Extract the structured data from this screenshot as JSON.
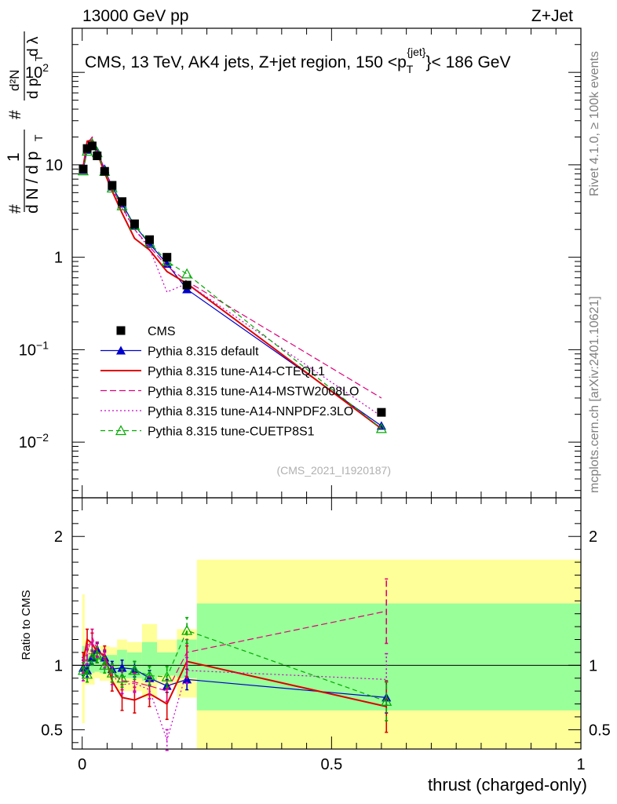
{
  "header": {
    "left": "13000 GeV pp",
    "right": "Z+Jet"
  },
  "side": {
    "rivet": "Rivet 4.1.0, ≥ 100k events",
    "site": "mcplots.cern.ch [arXiv:2401.10621]"
  },
  "main": {
    "title_prefix": "CMS, 13 TeV, AK4 jets, Z+jet region, 150 <p",
    "title_sub": "T",
    "title_sup": "{jet}",
    "title_suffix": "}< 186 GeV",
    "analysis_id": "(CMS_2021_I1920187)",
    "ylabel_parts": {
      "hash": "#",
      "one": "1",
      "den": "d N / d p",
      "T": "T",
      "d2N": "d²N",
      "hash2": "#",
      "dp": "d p",
      "dl": "d λ"
    }
  },
  "ratio": {
    "ylabel": "Ratio to CMS"
  },
  "xaxis": {
    "label": "thrust (charged-only)"
  },
  "chart_data": [
    {
      "type": "line",
      "panel": "main",
      "yscale": "log",
      "xlim": [
        -0.02,
        1.0
      ],
      "ylim": [
        0.0025,
        300
      ],
      "yticks": [
        {
          "value": 0.01,
          "label": "10",
          "sup": "−2"
        },
        {
          "value": 0.1,
          "label": "10",
          "sup": "−1"
        },
        {
          "value": 1,
          "label": "1",
          "sup": ""
        },
        {
          "value": 10,
          "label": "10",
          "sup": ""
        },
        {
          "value": 100,
          "label": "10",
          "sup": "2"
        }
      ],
      "legend_position": "lower-left",
      "series": [
        {
          "name": "CMS",
          "color": "#000000",
          "marker": "square",
          "dash": "none",
          "x": [
            0.002,
            0.01,
            0.02,
            0.03,
            0.045,
            0.06,
            0.08,
            0.105,
            0.135,
            0.17,
            0.21,
            0.6
          ],
          "y": [
            9,
            15,
            16,
            12.5,
            8.5,
            6,
            4,
            2.3,
            1.55,
            1.0,
            0.5,
            0.021
          ]
        },
        {
          "name": "Pythia 8.315 default",
          "color": "#0000cc",
          "marker": "triangle",
          "dash": "none",
          "x": [
            0.002,
            0.01,
            0.02,
            0.03,
            0.045,
            0.06,
            0.08,
            0.105,
            0.135,
            0.17,
            0.21,
            0.6
          ],
          "y": [
            8.8,
            14.5,
            17,
            14,
            9,
            5.8,
            3.8,
            2.2,
            1.4,
            0.85,
            0.45,
            0.015
          ]
        },
        {
          "name": "Pythia 8.315 tune-A14-CTEQL1",
          "color": "#e00000",
          "marker": "none",
          "dash": "none",
          "x": [
            0.002,
            0.01,
            0.02,
            0.03,
            0.045,
            0.06,
            0.08,
            0.105,
            0.135,
            0.17,
            0.21,
            0.6
          ],
          "y": [
            9.5,
            18,
            18.5,
            13.5,
            8.2,
            5.2,
            3.0,
            1.6,
            1.2,
            0.7,
            0.52,
            0.014
          ]
        },
        {
          "name": "Pythia 8.315 tune-A14-MSTW2008LO",
          "color": "#e0007a",
          "marker": "none",
          "dash": "8,4",
          "x": [
            0.002,
            0.01,
            0.02,
            0.03,
            0.045,
            0.06,
            0.08,
            0.105,
            0.135,
            0.17,
            0.21,
            0.6
          ],
          "y": [
            9.2,
            17,
            20,
            14,
            9,
            5.6,
            3.5,
            2.0,
            1.3,
            0.8,
            0.55,
            0.03
          ]
        },
        {
          "name": "Pythia 8.315 tune-A14-NNPDF2.3LO",
          "color": "#cc00cc",
          "marker": "none",
          "dash": "2,3",
          "x": [
            0.002,
            0.01,
            0.02,
            0.03,
            0.045,
            0.06,
            0.08,
            0.105,
            0.135,
            0.17,
            0.21,
            0.6
          ],
          "y": [
            8.5,
            16,
            18,
            13.5,
            8.8,
            5.5,
            3.4,
            2.0,
            1.25,
            0.42,
            0.52,
            0.019
          ]
        },
        {
          "name": "Pythia 8.315 tune-CUETP8S1",
          "color": "#00aa00",
          "marker": "open-triangle",
          "dash": "6,4",
          "x": [
            0.002,
            0.01,
            0.02,
            0.03,
            0.045,
            0.06,
            0.08,
            0.105,
            0.135,
            0.17,
            0.21,
            0.6
          ],
          "y": [
            8.6,
            14,
            17,
            13.5,
            8.5,
            5.6,
            3.6,
            2.2,
            1.45,
            0.9,
            0.66,
            0.014
          ]
        }
      ]
    },
    {
      "type": "line",
      "panel": "ratio",
      "yscale": "linear",
      "xlim": [
        -0.02,
        1.0
      ],
      "ylim": [
        0.35,
        2.3
      ],
      "yticks": [
        0.5,
        1,
        2
      ],
      "xticks": [
        {
          "value": 0,
          "label": "0"
        },
        {
          "value": 0.5,
          "label": "0.5"
        },
        {
          "value": 1,
          "label": "1"
        }
      ],
      "bands": {
        "edges": [
          0.0,
          0.005,
          0.015,
          0.025,
          0.035,
          0.055,
          0.07,
          0.09,
          0.12,
          0.15,
          0.19,
          0.23,
          1.0
        ],
        "yellow": [
          [
            0.55,
            1.55
          ],
          [
            0.85,
            1.2
          ],
          [
            0.85,
            1.12
          ],
          [
            0.9,
            1.12
          ],
          [
            0.88,
            1.15
          ],
          [
            0.85,
            1.14
          ],
          [
            0.8,
            1.2
          ],
          [
            0.8,
            1.18
          ],
          [
            0.75,
            1.32
          ],
          [
            0.85,
            1.2
          ],
          [
            0.75,
            1.28
          ],
          [
            0.35,
            1.82
          ]
        ],
        "green": [
          [
            0.9,
            1.15
          ],
          [
            0.92,
            1.08
          ],
          [
            0.94,
            1.06
          ],
          [
            0.95,
            1.06
          ],
          [
            0.94,
            1.08
          ],
          [
            0.92,
            1.08
          ],
          [
            0.9,
            1.12
          ],
          [
            0.9,
            1.1
          ],
          [
            0.88,
            1.18
          ],
          [
            0.92,
            1.1
          ],
          [
            0.9,
            1.2
          ],
          [
            0.65,
            1.48
          ]
        ]
      },
      "series": [
        {
          "name": "Pythia 8.315 default",
          "color": "#0000cc",
          "marker": "triangle",
          "dash": "none",
          "x": [
            0.002,
            0.01,
            0.02,
            0.03,
            0.045,
            0.06,
            0.08,
            0.105,
            0.135,
            0.17,
            0.21,
            0.61
          ],
          "y": [
            0.98,
            0.96,
            1.06,
            1.12,
            1.06,
            0.97,
            0.98,
            0.97,
            0.9,
            0.84,
            0.89,
            0.75
          ],
          "err": [
            0.06,
            0.05,
            0.05,
            0.05,
            0.05,
            0.06,
            0.06,
            0.06,
            0.06,
            0.05,
            0.08,
            0.12
          ]
        },
        {
          "name": "Pythia 8.315 tune-A14-CTEQL1",
          "color": "#e00000",
          "marker": "none",
          "dash": "none",
          "x": [
            0.002,
            0.01,
            0.02,
            0.03,
            0.045,
            0.06,
            0.08,
            0.105,
            0.135,
            0.17,
            0.21,
            0.61
          ],
          "y": [
            1.02,
            1.2,
            1.17,
            1.1,
            1.08,
            0.88,
            0.75,
            0.73,
            0.78,
            0.7,
            1.03,
            0.68
          ],
          "err": [
            0.08,
            0.08,
            0.08,
            0.08,
            0.07,
            0.08,
            0.1,
            0.1,
            0.1,
            0.12,
            0.12,
            0.2
          ]
        },
        {
          "name": "Pythia 8.315 tune-A14-MSTW2008LO",
          "color": "#e0007a",
          "marker": "none",
          "dash": "8,4",
          "x": [
            0.002,
            0.01,
            0.02,
            0.03,
            0.045,
            0.06,
            0.08,
            0.105,
            0.135,
            0.17,
            0.21,
            0.61
          ],
          "y": [
            1.0,
            1.1,
            1.22,
            1.12,
            1.06,
            0.94,
            0.88,
            0.87,
            0.84,
            0.8,
            1.1,
            1.42
          ],
          "err": [
            0.06,
            0.06,
            0.06,
            0.06,
            0.06,
            0.07,
            0.07,
            0.07,
            0.07,
            0.08,
            0.1,
            0.25
          ]
        },
        {
          "name": "Pythia 8.315 tune-A14-NNPDF2.3LO",
          "color": "#cc00cc",
          "marker": "none",
          "dash": "2,3",
          "x": [
            0.002,
            0.01,
            0.02,
            0.03,
            0.045,
            0.06,
            0.08,
            0.105,
            0.135,
            0.17,
            0.21,
            0.61
          ],
          "y": [
            0.94,
            1.07,
            1.12,
            1.08,
            1.04,
            0.92,
            0.85,
            0.86,
            0.81,
            0.42,
            0.96,
            0.89
          ],
          "err": [
            0.06,
            0.06,
            0.06,
            0.06,
            0.06,
            0.07,
            0.07,
            0.07,
            0.07,
            0.08,
            0.1,
            0.2
          ]
        },
        {
          "name": "Pythia 8.315 tune-CUETP8S1",
          "color": "#00aa00",
          "marker": "open-triangle",
          "dash": "6,4",
          "x": [
            0.002,
            0.01,
            0.02,
            0.03,
            0.045,
            0.06,
            0.08,
            0.105,
            0.135,
            0.17,
            0.21,
            0.61
          ],
          "y": [
            0.96,
            0.93,
            1.06,
            1.08,
            1.0,
            0.94,
            0.9,
            0.96,
            0.92,
            0.91,
            1.27,
            0.72
          ],
          "err": [
            0.06,
            0.06,
            0.06,
            0.06,
            0.06,
            0.07,
            0.07,
            0.07,
            0.07,
            0.08,
            0.1,
            0.15
          ]
        }
      ]
    }
  ]
}
